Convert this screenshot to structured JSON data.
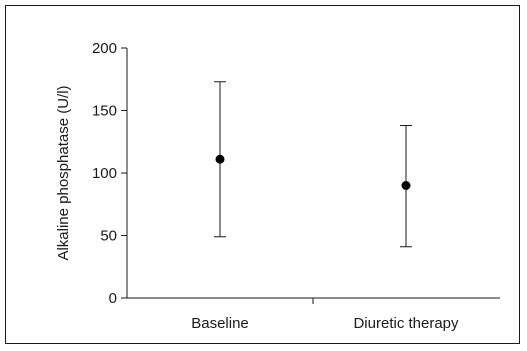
{
  "chart_data": {
    "type": "scatter",
    "title": "",
    "xlabel": "",
    "ylabel": "Alkaline phosphatase (U/l)",
    "categories": [
      "Baseline",
      "Diuretic therapy"
    ],
    "series": [
      {
        "values": [
          111,
          90
        ],
        "error_low": [
          49,
          41
        ],
        "error_high": [
          173,
          138
        ]
      }
    ],
    "ylim": [
      0,
      200
    ],
    "yticks": [
      0,
      50,
      100,
      150,
      200
    ],
    "grid": false,
    "legend": "none",
    "colors": {
      "point": "#000000",
      "axis": "#1a1a1a"
    }
  }
}
